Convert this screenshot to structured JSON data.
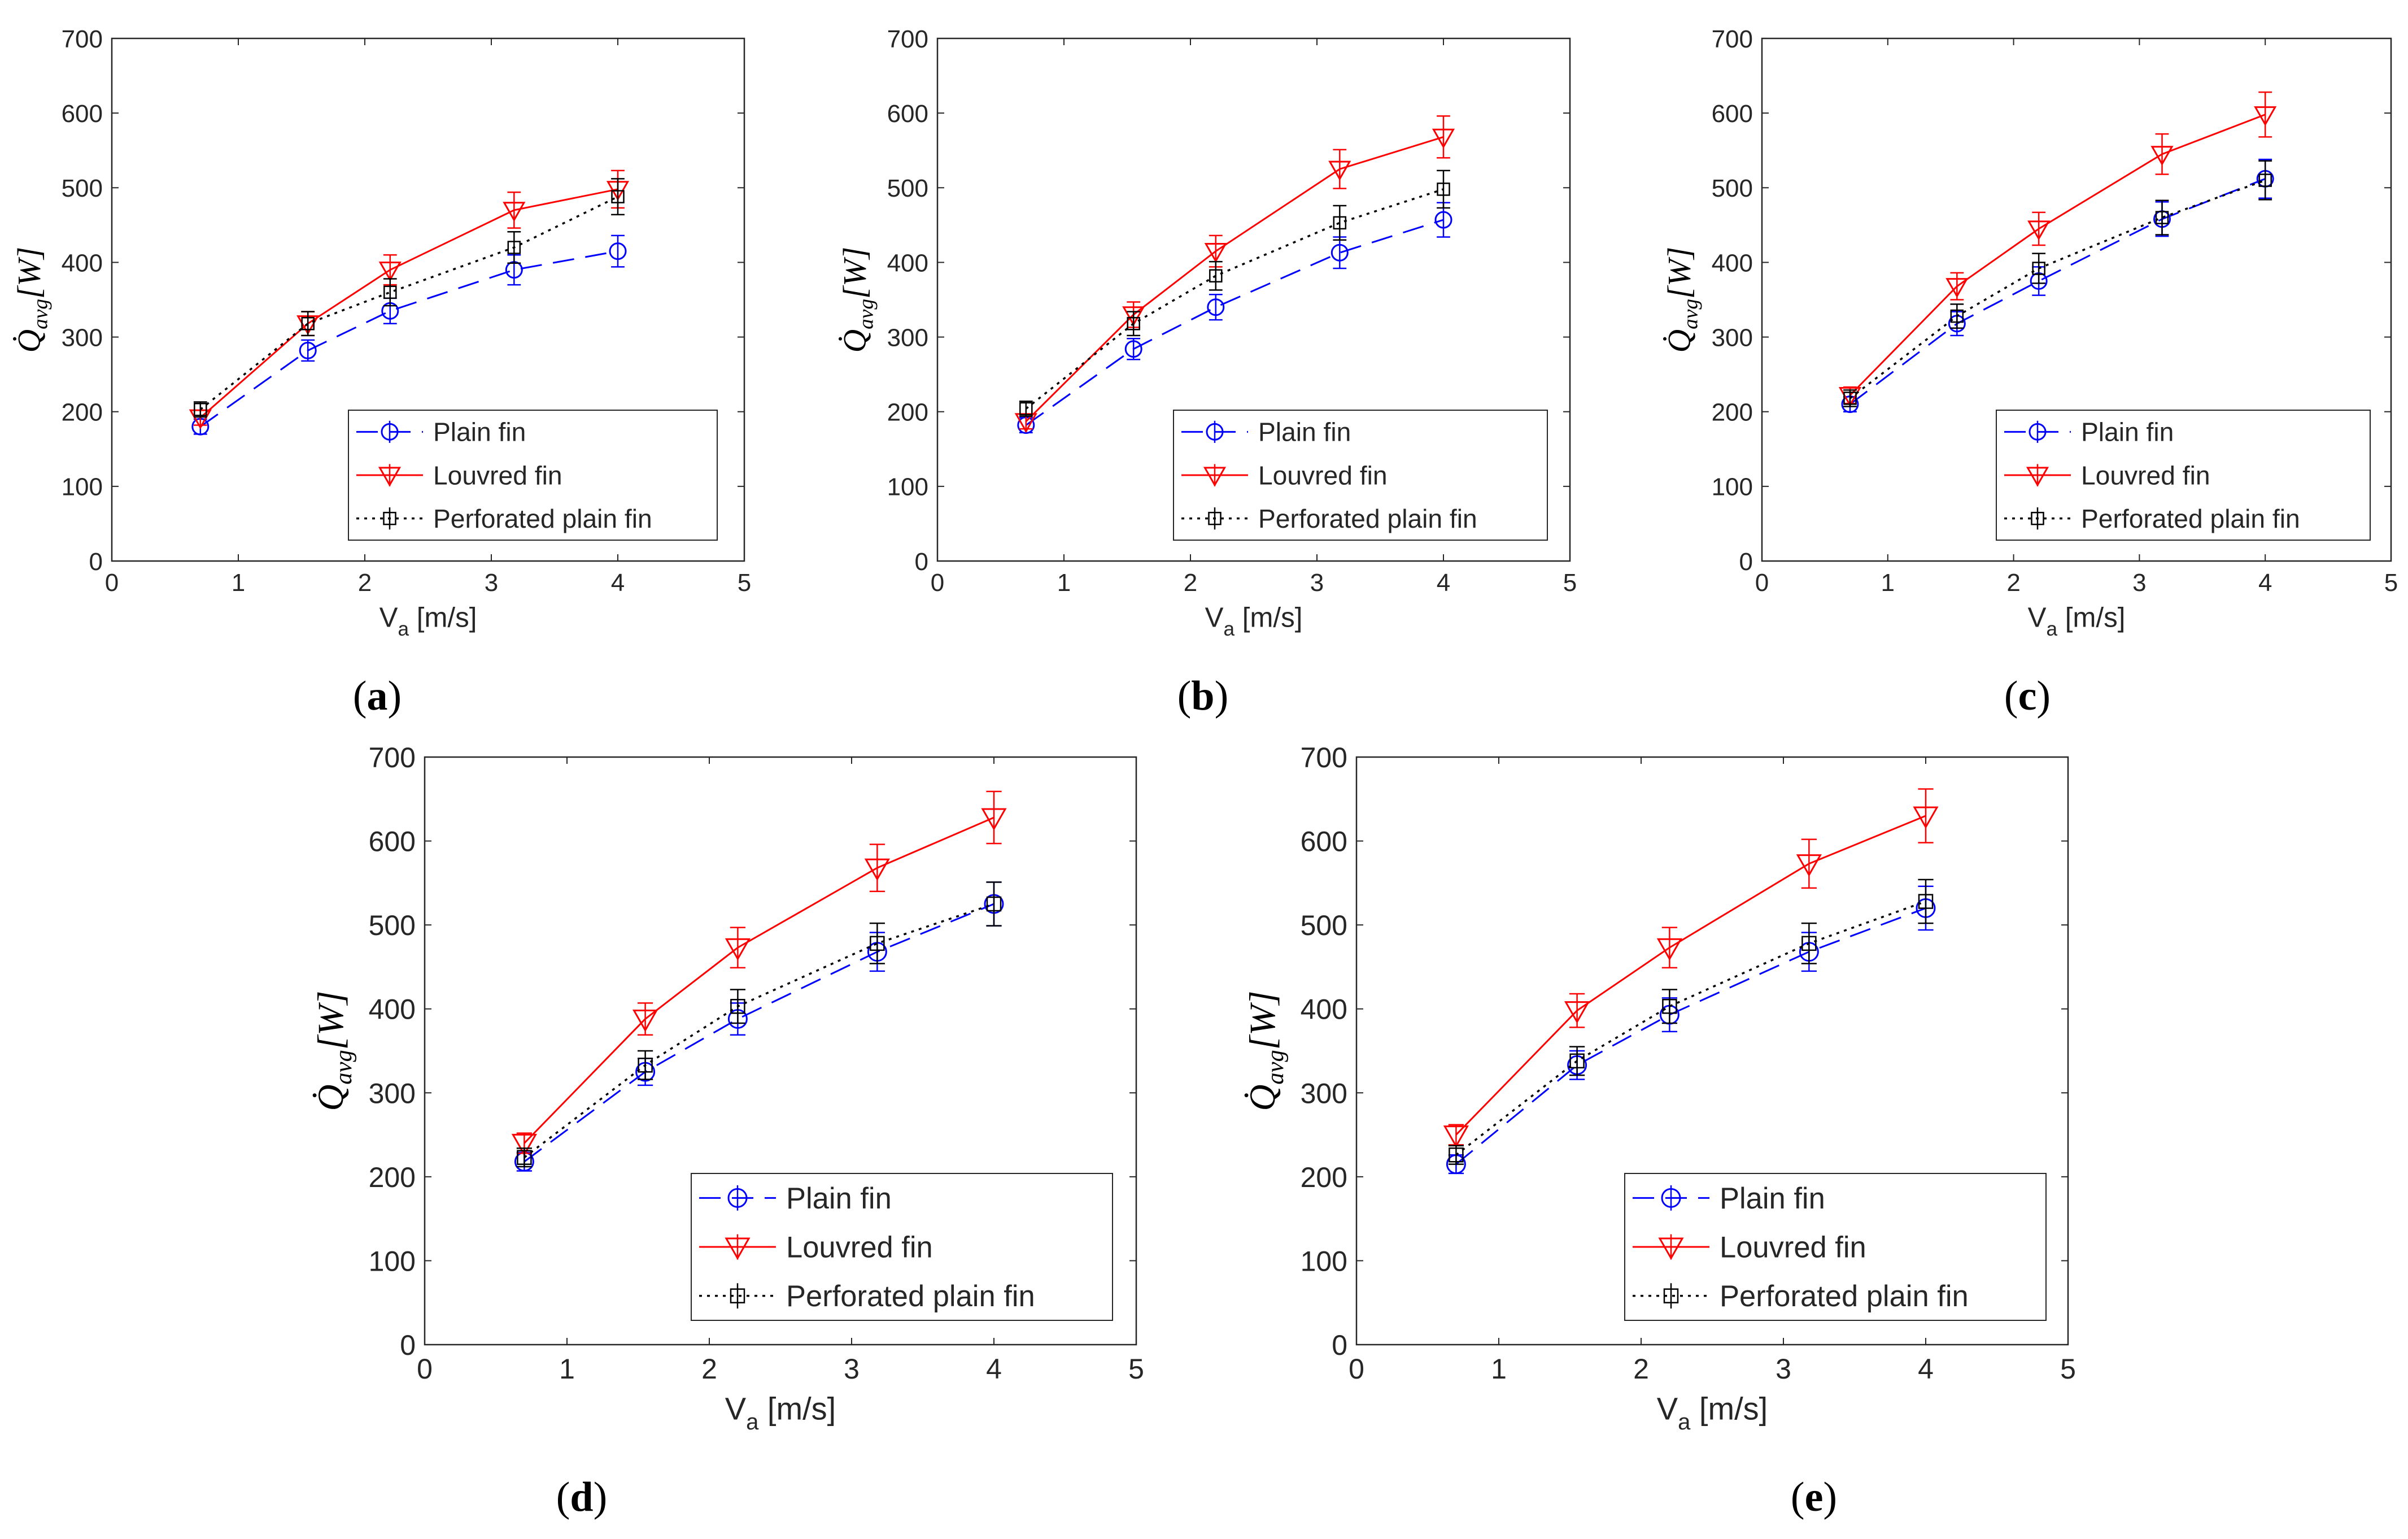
{
  "figure": {
    "panel_labels": [
      "(a)",
      "(b)",
      "(c)",
      "(d)",
      "(e)"
    ]
  },
  "chart_data": [
    {
      "type": "line",
      "panel": "a",
      "title": "",
      "xlabel": "V_a [m/s]",
      "ylabel": "Q̇avg [W]",
      "xlim": [
        0,
        5
      ],
      "ylim": [
        0,
        700
      ],
      "xticks": [
        0,
        1,
        2,
        3,
        4,
        5
      ],
      "yticks": [
        0,
        100,
        200,
        300,
        400,
        500,
        600,
        700
      ],
      "legend_position": "bottom-right",
      "grid": false,
      "x": [
        0.7,
        1.55,
        2.2,
        3.18,
        4.0
      ],
      "series": [
        {
          "name": "Plain fin",
          "values": [
            180,
            282,
            335,
            390,
            415
          ],
          "errors": [
            10,
            14,
            17,
            20,
            21
          ],
          "color": "#0000ff",
          "marker": "circle",
          "line": "dashed"
        },
        {
          "name": "Louvred fin",
          "values": [
            192,
            318,
            390,
            470,
            498
          ],
          "errors": [
            10,
            16,
            20,
            24,
            25
          ],
          "color": "#ff0000",
          "marker": "triangle-down",
          "line": "solid"
        },
        {
          "name": "Perforated plain fin",
          "values": [
            203,
            318,
            360,
            420,
            488
          ],
          "errors": [
            10,
            16,
            18,
            21,
            24
          ],
          "color": "#000000",
          "marker": "square",
          "line": "dotted"
        }
      ]
    },
    {
      "type": "line",
      "panel": "b",
      "title": "",
      "xlabel": "V_a [m/s]",
      "ylabel": "Q̇avg [W]",
      "xlim": [
        0,
        5
      ],
      "ylim": [
        0,
        700
      ],
      "xticks": [
        0,
        1,
        2,
        3,
        4,
        5
      ],
      "yticks": [
        0,
        100,
        200,
        300,
        400,
        500,
        600,
        700
      ],
      "legend_position": "bottom-right",
      "grid": false,
      "x": [
        0.7,
        1.55,
        2.2,
        3.18,
        4.0
      ],
      "series": [
        {
          "name": "Plain fin",
          "values": [
            182,
            284,
            340,
            413,
            457
          ],
          "errors": [
            10,
            14,
            17,
            21,
            23
          ],
          "color": "#0000ff",
          "marker": "circle",
          "line": "dashed"
        },
        {
          "name": "Louvred fin",
          "values": [
            187,
            330,
            415,
            525,
            568
          ],
          "errors": [
            10,
            17,
            21,
            26,
            28
          ],
          "color": "#ff0000",
          "marker": "triangle-down",
          "line": "solid"
        },
        {
          "name": "Perforated plain fin",
          "values": [
            204,
            318,
            382,
            453,
            498
          ],
          "errors": [
            10,
            16,
            19,
            23,
            25
          ],
          "color": "#000000",
          "marker": "square",
          "line": "dotted"
        }
      ]
    },
    {
      "type": "line",
      "panel": "c",
      "title": "",
      "xlabel": "V_a [m/s]",
      "ylabel": "Q̇avg [W]",
      "xlim": [
        0,
        5
      ],
      "ylim": [
        0,
        700
      ],
      "xticks": [
        0,
        1,
        2,
        3,
        4,
        5
      ],
      "yticks": [
        0,
        100,
        200,
        300,
        400,
        500,
        600,
        700
      ],
      "legend_position": "bottom-right",
      "grid": false,
      "x": [
        0.7,
        1.55,
        2.2,
        3.18,
        4.0
      ],
      "series": [
        {
          "name": "Plain fin",
          "values": [
            210,
            318,
            375,
            458,
            512
          ],
          "errors": [
            10,
            16,
            19,
            23,
            26
          ],
          "color": "#0000ff",
          "marker": "circle",
          "line": "dashed"
        },
        {
          "name": "Louvred fin",
          "values": [
            222,
            368,
            445,
            545,
            598
          ],
          "errors": [
            11,
            18,
            22,
            27,
            30
          ],
          "color": "#ff0000",
          "marker": "triangle-down",
          "line": "solid"
        },
        {
          "name": "Perforated plain fin",
          "values": [
            218,
            328,
            392,
            460,
            510
          ],
          "errors": [
            11,
            16,
            20,
            23,
            26
          ],
          "color": "#000000",
          "marker": "square",
          "line": "dotted"
        }
      ]
    },
    {
      "type": "line",
      "panel": "d",
      "title": "",
      "xlabel": "V_a [m/s]",
      "ylabel": "Q̇avg [W]",
      "xlim": [
        0,
        5
      ],
      "ylim": [
        0,
        700
      ],
      "xticks": [
        0,
        1,
        2,
        3,
        4,
        5
      ],
      "yticks": [
        0,
        100,
        200,
        300,
        400,
        500,
        600,
        700
      ],
      "legend_position": "bottom-right",
      "grid": false,
      "x": [
        0.7,
        1.55,
        2.2,
        3.18,
        4.0
      ],
      "series": [
        {
          "name": "Plain fin",
          "values": [
            218,
            325,
            388,
            468,
            525
          ],
          "errors": [
            11,
            16,
            19,
            23,
            26
          ],
          "color": "#0000ff",
          "marker": "circle",
          "line": "dashed"
        },
        {
          "name": "Louvred fin",
          "values": [
            240,
            388,
            473,
            568,
            628
          ],
          "errors": [
            12,
            19,
            24,
            28,
            31
          ],
          "color": "#ff0000",
          "marker": "triangle-down",
          "line": "solid"
        },
        {
          "name": "Perforated plain fin",
          "values": [
            223,
            333,
            403,
            478,
            525
          ],
          "errors": [
            11,
            17,
            20,
            24,
            26
          ],
          "color": "#000000",
          "marker": "square",
          "line": "dotted"
        }
      ]
    },
    {
      "type": "line",
      "panel": "e",
      "title": "",
      "xlabel": "V_a [m/s]",
      "ylabel": "Q̇avg [W]",
      "xlim": [
        0,
        5
      ],
      "ylim": [
        0,
        700
      ],
      "xticks": [
        0,
        1,
        2,
        3,
        4,
        5
      ],
      "yticks": [
        0,
        100,
        200,
        300,
        400,
        500,
        600,
        700
      ],
      "legend_position": "bottom-right",
      "grid": false,
      "x": [
        0.7,
        1.55,
        2.2,
        3.18,
        4.0
      ],
      "series": [
        {
          "name": "Plain fin",
          "values": [
            215,
            333,
            393,
            468,
            520
          ],
          "errors": [
            11,
            17,
            20,
            23,
            26
          ],
          "color": "#0000ff",
          "marker": "circle",
          "line": "dashed"
        },
        {
          "name": "Louvred fin",
          "values": [
            250,
            398,
            473,
            573,
            630
          ],
          "errors": [
            12,
            20,
            24,
            29,
            32
          ],
          "color": "#ff0000",
          "marker": "triangle-down",
          "line": "solid"
        },
        {
          "name": "Perforated plain fin",
          "values": [
            226,
            338,
            403,
            478,
            528
          ],
          "errors": [
            11,
            17,
            20,
            24,
            26
          ],
          "color": "#000000",
          "marker": "square",
          "line": "dotted"
        }
      ]
    }
  ]
}
